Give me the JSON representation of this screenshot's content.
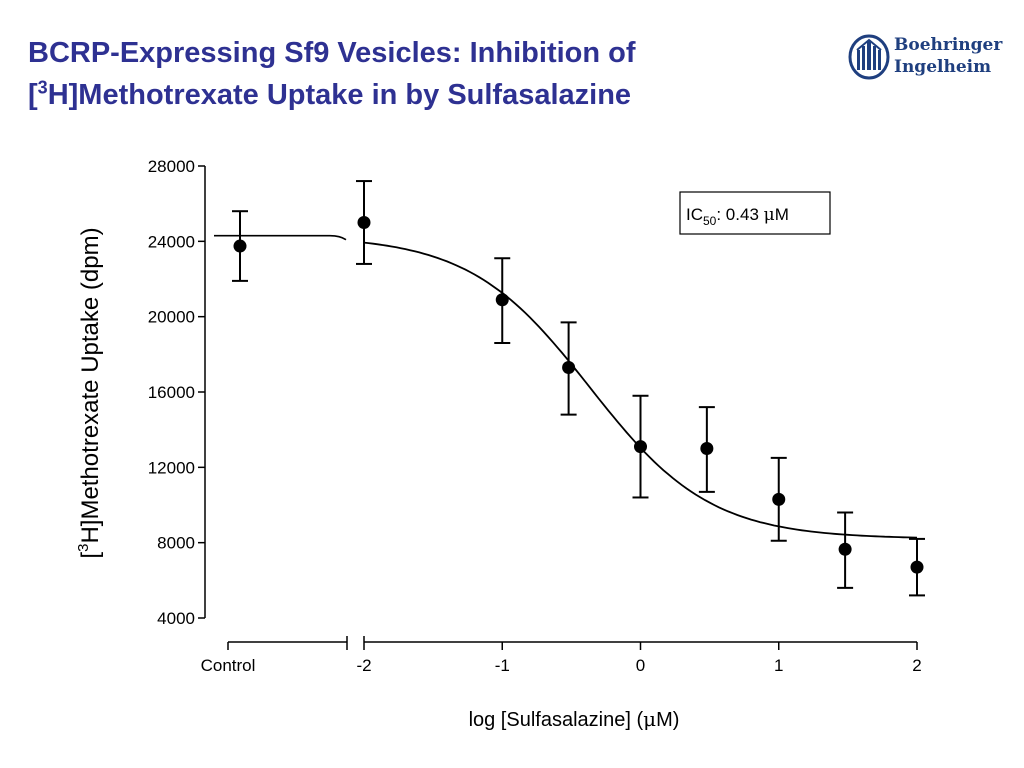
{
  "slide": {
    "title_line1": "BCRP-Expressing Sf9 Vesicles: Inhibition of",
    "title_line2_bracket": "[",
    "title_line2_sup": "3",
    "title_line2_rest": "H]Methotrexate Uptake in by Sulfasalazine",
    "logo_line1": "Boehringer",
    "logo_line2": "Ingelheim",
    "brand_color": "#2e3192",
    "logo_color": "#1f3f7f"
  },
  "chart_data": {
    "type": "scatter",
    "title": "",
    "xlabel_pre": "log [Sulfasalazine] (",
    "xlabel_mu": "μ",
    "xlabel_post": "M)",
    "ylabel_pre": "[",
    "ylabel_sup": "3",
    "ylabel_post": "H]Methotrexate Uptake (dpm)",
    "ylim": [
      4000,
      28000
    ],
    "y_ticks": [
      "28000",
      "24000",
      "20000",
      "16000",
      "12000",
      "8000",
      "4000"
    ],
    "y_tick_values": [
      28000,
      24000,
      20000,
      16000,
      12000,
      8000,
      4000
    ],
    "xlim": [
      -2,
      2
    ],
    "x_ticks": [
      "-2",
      "-1",
      "0",
      "1",
      "2"
    ],
    "x_tick_values": [
      -2,
      -1,
      0,
      1,
      2
    ],
    "control_label": "Control",
    "control_point": {
      "y": 23750,
      "err_low": 21900,
      "err_high": 25600
    },
    "points": [
      {
        "x": -2.0,
        "y": 25000,
        "err_low": 22800,
        "err_high": 27200
      },
      {
        "x": -1.0,
        "y": 20900,
        "err_low": 18600,
        "err_high": 23100
      },
      {
        "x": -0.52,
        "y": 17300,
        "err_low": 14800,
        "err_high": 19700
      },
      {
        "x": 0.0,
        "y": 13100,
        "err_low": 10400,
        "err_high": 15800
      },
      {
        "x": 0.48,
        "y": 13000,
        "err_low": 10700,
        "err_high": 15200
      },
      {
        "x": 1.0,
        "y": 10300,
        "err_low": 8100,
        "err_high": 12500
      },
      {
        "x": 1.48,
        "y": 7650,
        "err_low": 5600,
        "err_high": 9600
      },
      {
        "x": 2.0,
        "y": 6700,
        "err_low": 5200,
        "err_high": 8200
      }
    ],
    "fit": {
      "top": 24300,
      "bottom": 8200,
      "log_ic50": -0.367,
      "hill": -1.0
    },
    "annotation": {
      "pre": "IC",
      "sub": "50",
      "mid": ": 0.43 ",
      "mu": "μ",
      "post": "M"
    },
    "grid": false,
    "legend": "none"
  }
}
